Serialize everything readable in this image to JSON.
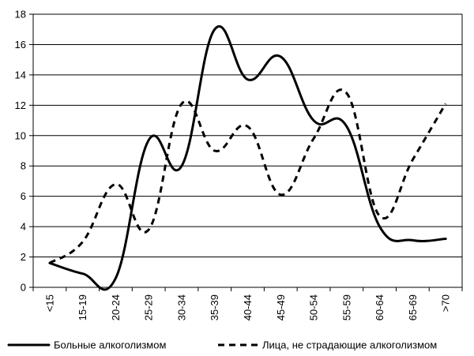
{
  "chart_data": {
    "type": "line",
    "title": "",
    "xlabel": "",
    "ylabel": "",
    "ylim": [
      0,
      18
    ],
    "yticks": [
      0,
      2,
      4,
      6,
      8,
      10,
      12,
      14,
      16,
      18
    ],
    "grid": "horizontal",
    "legend_position": "bottom",
    "categories": [
      "<15",
      "15-19",
      "20-24",
      "25-29",
      "30-34",
      "35-39",
      "40-44",
      "45-49",
      "50-54",
      "55-59",
      "60-64",
      "65-69",
      ">70"
    ],
    "series": [
      {
        "name": "Больные алкоголизмом",
        "style": "solid",
        "values": [
          1.6,
          0.9,
          0.6,
          9.7,
          8.0,
          17.0,
          13.7,
          15.2,
          11.0,
          10.6,
          4.0,
          3.1,
          3.2
        ]
      },
      {
        "name": "Лица, не страдающие алкоголизмом",
        "style": "dashed",
        "values": [
          1.6,
          3.0,
          6.8,
          3.8,
          12.1,
          9.0,
          10.6,
          6.1,
          9.8,
          12.8,
          4.7,
          8.4,
          12.1
        ]
      }
    ]
  }
}
